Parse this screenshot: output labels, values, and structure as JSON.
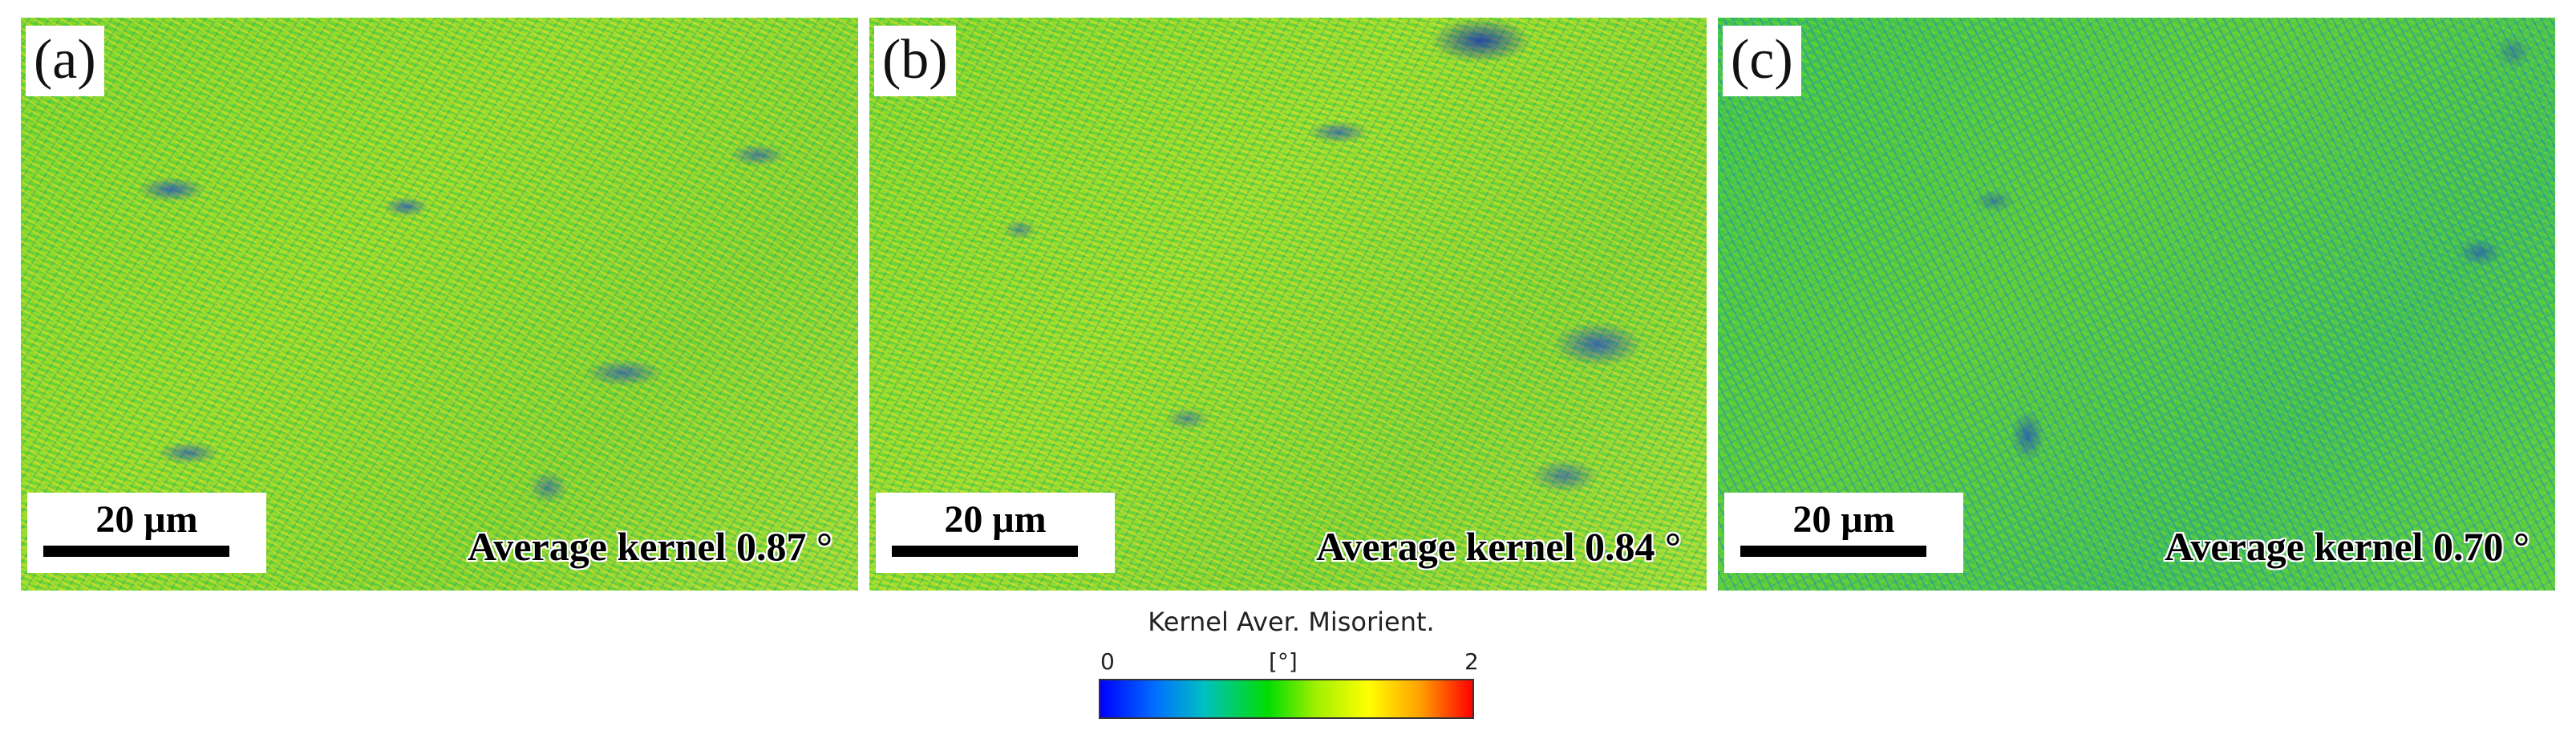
{
  "panels": [
    {
      "label": "(a)",
      "scale_bar": "20 μm",
      "average_text": "Average kernel 0.87 °"
    },
    {
      "label": "(b)",
      "scale_bar": "20 μm",
      "average_text": "Average kernel 0.84 °"
    },
    {
      "label": "(c)",
      "scale_bar": "20 μm",
      "average_text": "Average kernel 0.70 °"
    }
  ],
  "legend": {
    "title": "Kernel Aver. Misorient.",
    "min": "0",
    "unit": "[°]",
    "max": "2",
    "colors": [
      "#0000ff",
      "#00c0c0",
      "#00dd00",
      "#ffff00",
      "#ffa000",
      "#ff0000"
    ]
  }
}
